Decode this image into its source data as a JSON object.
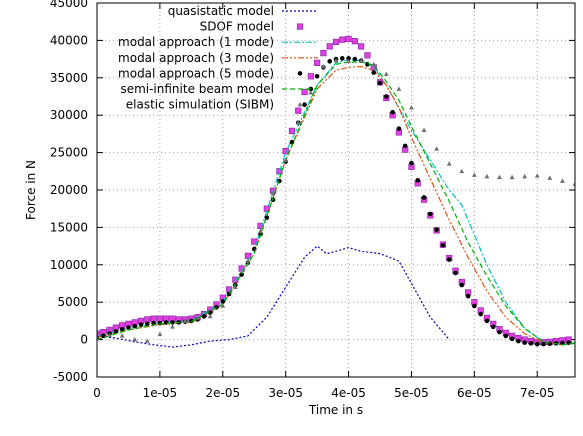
{
  "chart_data": {
    "type": "line",
    "xlabel": "Time in s",
    "ylabel": "Force in N",
    "xlim": [
      0,
      7.6e-05
    ],
    "ylim": [
      -5000,
      45000
    ],
    "x_ticks": [
      0,
      1e-05,
      2e-05,
      3e-05,
      4e-05,
      5e-05,
      6e-05,
      7e-05
    ],
    "x_tick_labels": [
      "0",
      "1e-05",
      "2e-05",
      "3e-05",
      "4e-05",
      "5e-05",
      "6e-05",
      "7e-05"
    ],
    "y_ticks": [
      -5000,
      0,
      5000,
      10000,
      15000,
      20000,
      25000,
      30000,
      35000,
      40000,
      45000
    ],
    "y_tick_labels": [
      "-5000",
      "0",
      "5000",
      "10000",
      "15000",
      "20000",
      "25000",
      "30000",
      "35000",
      "40000",
      "45000"
    ],
    "grid": true,
    "legend_position": "top-left",
    "series": [
      {
        "name": "quasistatic model",
        "style": "dotted-line",
        "color": "#0000c0",
        "x": [
          0,
          3e-06,
          6e-06,
          9e-06,
          1.2e-05,
          1.5e-05,
          1.8e-05,
          2.1e-05,
          2.4e-05,
          2.7e-05,
          3e-05,
          3.3e-05,
          3.5e-05,
          3.65e-05,
          3.8e-05,
          4e-05,
          4.2e-05,
          4.5e-05,
          4.8e-05,
          5e-05,
          5.3e-05,
          5.6e-05
        ],
        "y": [
          500,
          200,
          -300,
          -700,
          -1000,
          -700,
          -200,
          0,
          500,
          3000,
          7000,
          11000,
          12500,
          11500,
          11800,
          12300,
          11800,
          11500,
          10500,
          7500,
          3000,
          0
        ]
      },
      {
        "name": "SDOF model",
        "style": "square-markers",
        "color": "#e040e0",
        "x": [
          0,
          1e-06,
          2e-06,
          3e-06,
          4e-06,
          5e-06,
          6e-06,
          7e-06,
          8e-06,
          9e-06,
          1e-05,
          1.1e-05,
          1.2e-05,
          1.3e-05,
          1.4e-05,
          1.5e-05,
          1.6e-05,
          1.7e-05,
          1.8e-05,
          1.9e-05,
          2e-05,
          2.1e-05,
          2.2e-05,
          2.3e-05,
          2.4e-05,
          2.5e-05,
          2.6e-05,
          2.7e-05,
          2.8e-05,
          2.9e-05,
          3e-05,
          3.1e-05,
          3.2e-05,
          3.3e-05,
          3.4e-05,
          3.5e-05,
          3.6e-05,
          3.7e-05,
          3.8e-05,
          3.9e-05,
          4e-05,
          4.1e-05,
          4.2e-05,
          4.3e-05,
          4.4e-05,
          4.5e-05,
          4.6e-05,
          4.7e-05,
          4.8e-05,
          4.9e-05,
          5e-05,
          5.1e-05,
          5.2e-05,
          5.3e-05,
          5.4e-05,
          5.5e-05,
          5.6e-05,
          5.7e-05,
          5.8e-05,
          5.9e-05,
          6e-05,
          6.1e-05,
          6.2e-05,
          6.3e-05,
          6.4e-05,
          6.5e-05,
          6.6e-05,
          6.7e-05,
          6.8e-05,
          6.9e-05,
          7e-05,
          7.1e-05,
          7.2e-05,
          7.3e-05,
          7.4e-05,
          7.5e-05
        ],
        "y": [
          800,
          1000,
          1300,
          1600,
          1900,
          2100,
          2300,
          2500,
          2700,
          2800,
          2800,
          2800,
          2800,
          2700,
          2700,
          2800,
          3000,
          3400,
          4000,
          4700,
          5600,
          6700,
          8000,
          9500,
          11200,
          13100,
          15200,
          17500,
          19900,
          22500,
          25200,
          27900,
          30600,
          33100,
          35200,
          37000,
          38300,
          39200,
          39800,
          40100,
          40200,
          39900,
          39200,
          38000,
          36400,
          34400,
          32300,
          30000,
          27700,
          25400,
          23100,
          20900,
          18700,
          16600,
          14600,
          12700,
          10900,
          9200,
          7700,
          6300,
          5000,
          3900,
          2900,
          2100,
          1400,
          900,
          500,
          200,
          0,
          -200,
          -300,
          -350,
          -300,
          -200,
          -100,
          0
        ]
      },
      {
        "name": "modal approach (1 mode)",
        "style": "dash-dot-line",
        "color": "#00c0c0",
        "x": [
          0,
          5e-06,
          1e-05,
          1.5e-05,
          2e-05,
          2.5e-05,
          3e-05,
          3.5e-05,
          3.8e-05,
          4e-05,
          4.2e-05,
          4.4e-05,
          4.6e-05,
          4.8e-05,
          5e-05,
          5.3e-05,
          5.6e-05,
          5.8e-05,
          6e-05,
          6.2e-05,
          6.5e-05,
          6.8e-05,
          7.1e-05,
          7.4e-05,
          7.6e-05
        ],
        "y": [
          400,
          1500,
          2300,
          2500,
          5000,
          12000,
          25000,
          34000,
          37000,
          37400,
          37300,
          36500,
          34000,
          31000,
          28000,
          24000,
          20000,
          18000,
          14000,
          10000,
          5000,
          1500,
          -300,
          -700,
          -400
        ]
      },
      {
        "name": "modal approach (3 mode)",
        "style": "dash-dot-dot-line",
        "color": "#e05010",
        "x": [
          0,
          5e-06,
          1e-05,
          1.5e-05,
          2e-05,
          2.5e-05,
          3e-05,
          3.5e-05,
          3.8e-05,
          4e-05,
          4.2e-05,
          4.4e-05,
          4.6e-05,
          4.8e-05,
          5e-05,
          5.3e-05,
          5.6e-05,
          5.9e-05,
          6.2e-05,
          6.5e-05,
          6.8e-05,
          7.1e-05,
          7.4e-05,
          7.6e-05
        ],
        "y": [
          300,
          1300,
          2000,
          2300,
          4700,
          11500,
          24000,
          33500,
          36000,
          36400,
          36500,
          36000,
          34000,
          31000,
          27000,
          21500,
          16000,
          11000,
          6500,
          3000,
          800,
          -400,
          -700,
          -500
        ]
      },
      {
        "name": "modal approach (5 mode)",
        "style": "dot-markers",
        "color": "#000000",
        "x": [
          0,
          1e-06,
          2e-06,
          3e-06,
          4e-06,
          5e-06,
          6e-06,
          7e-06,
          8e-06,
          9e-06,
          1e-05,
          1.1e-05,
          1.2e-05,
          1.3e-05,
          1.4e-05,
          1.5e-05,
          1.6e-05,
          1.7e-05,
          1.8e-05,
          1.9e-05,
          2e-05,
          2.1e-05,
          2.2e-05,
          2.3e-05,
          2.4e-05,
          2.5e-05,
          2.6e-05,
          2.7e-05,
          2.8e-05,
          2.9e-05,
          3e-05,
          3.1e-05,
          3.2e-05,
          3.3e-05,
          3.4e-05,
          3.5e-05,
          3.6e-05,
          3.7e-05,
          3.8e-05,
          3.9e-05,
          4e-05,
          4.1e-05,
          4.2e-05,
          4.3e-05,
          4.4e-05,
          4.5e-05,
          4.6e-05,
          4.7e-05,
          4.8e-05,
          4.9e-05,
          5e-05,
          5.1e-05,
          5.2e-05,
          5.3e-05,
          5.4e-05,
          5.5e-05,
          5.6e-05,
          5.7e-05,
          5.8e-05,
          5.9e-05,
          6e-05,
          6.1e-05,
          6.2e-05,
          6.3e-05,
          6.4e-05,
          6.5e-05,
          6.6e-05,
          6.7e-05,
          6.8e-05,
          6.9e-05,
          7e-05,
          7.1e-05,
          7.2e-05,
          7.3e-05,
          7.4e-05,
          7.5e-05
        ],
        "y": [
          200,
          500,
          800,
          1100,
          1400,
          1600,
          1800,
          2000,
          2100,
          2200,
          2200,
          2300,
          2300,
          2300,
          2400,
          2500,
          2700,
          3100,
          3600,
          4300,
          5100,
          6100,
          7300,
          8700,
          10300,
          12100,
          14100,
          16300,
          18700,
          21200,
          23800,
          26400,
          29000,
          31400,
          33500,
          35200,
          36400,
          37200,
          37500,
          37600,
          37600,
          37500,
          37300,
          36800,
          35700,
          34300,
          32500,
          30400,
          28200,
          25900,
          23600,
          21300,
          19000,
          16800,
          14700,
          12600,
          10700,
          8900,
          7300,
          5800,
          4500,
          3400,
          2500,
          1700,
          1000,
          500,
          100,
          -200,
          -400,
          -500,
          -600,
          -600,
          -550,
          -500,
          -450,
          -400
        ]
      },
      {
        "name": "semi-infinite beam model",
        "style": "dashed-line",
        "color": "#00b000",
        "x": [
          0,
          5e-06,
          1e-05,
          1.5e-05,
          2e-05,
          2.5e-05,
          3e-05,
          3.5e-05,
          3.8e-05,
          4e-05,
          4.2e-05,
          4.4e-05,
          4.6e-05,
          4.8e-05,
          5e-05,
          5.3e-05,
          5.6e-05,
          5.9e-05,
          6.2e-05,
          6.5e-05,
          6.8e-05,
          7.1e-05,
          7.4e-05,
          7.6e-05
        ],
        "y": [
          0,
          1300,
          2100,
          2400,
          4700,
          11500,
          24000,
          34000,
          36800,
          37100,
          37100,
          36700,
          34500,
          32000,
          28500,
          23500,
          18500,
          13000,
          8500,
          4500,
          1500,
          -300,
          -700,
          -500
        ]
      },
      {
        "name": "elastic simulation (SIBM)",
        "style": "triangle-markers",
        "color": "#707070",
        "x": [
          0,
          2e-06,
          4e-06,
          6e-06,
          8e-06,
          1e-05,
          1.2e-05,
          1.4e-05,
          1.6e-05,
          1.8e-05,
          2e-05,
          2.2e-05,
          2.4e-05,
          2.6e-05,
          2.8e-05,
          3e-05,
          3.2e-05,
          3.4e-05,
          3.6e-05,
          3.8e-05,
          4e-05,
          4.2e-05,
          4.4e-05,
          4.6e-05,
          4.8e-05,
          5e-05,
          5.2e-05,
          5.4e-05,
          5.6e-05,
          5.8e-05,
          6e-05,
          6.2e-05,
          6.4e-05,
          6.6e-05,
          6.8e-05,
          7e-05,
          7.2e-05,
          7.4e-05,
          7.6e-05
        ],
        "y": [
          300,
          600,
          500,
          0,
          -200,
          700,
          1700,
          2500,
          2900,
          3100,
          4500,
          7000,
          10500,
          14500,
          19500,
          24000,
          29000,
          33000,
          36500,
          37300,
          37200,
          37300,
          36800,
          35500,
          33500,
          31000,
          28000,
          25500,
          23500,
          22500,
          22000,
          21800,
          21700,
          21700,
          21800,
          21900,
          21600,
          21200,
          20800
        ]
      }
    ]
  }
}
